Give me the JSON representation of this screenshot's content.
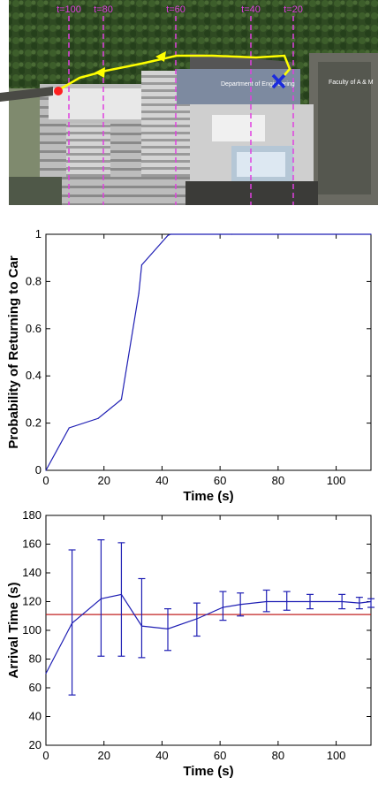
{
  "map": {
    "time_markers": [
      {
        "label": "t=100"
      },
      {
        "label": "t=80"
      },
      {
        "label": "t=60"
      },
      {
        "label": "t=40"
      },
      {
        "label": "t=20"
      }
    ],
    "labels": {
      "building": "Department of Engineering",
      "faculty": "Faculty of A & M"
    },
    "colors": {
      "marker_line": "#e040e0",
      "path": "#ffff00",
      "start": "#ff2020",
      "car": "#1a2bdd"
    }
  },
  "chart_data": [
    {
      "type": "line",
      "xlabel": "Time (s)",
      "ylabel": "Probability of Returning to Car",
      "xlim": [
        0,
        112
      ],
      "ylim": [
        0,
        1
      ],
      "xticks": [
        0,
        20,
        40,
        60,
        80,
        100
      ],
      "yticks": [
        0,
        0.2,
        0.4,
        0.6,
        0.8,
        1
      ],
      "grid": false,
      "series": [
        {
          "color": "#1f1fb4",
          "x": [
            0,
            8,
            18,
            26,
            32,
            33,
            42,
            43,
            60,
            64,
            112
          ],
          "y": [
            0,
            0.18,
            0.22,
            0.3,
            0.75,
            0.87,
            0.995,
            1.0,
            1.0,
            1.0,
            1.0
          ]
        }
      ]
    },
    {
      "type": "line",
      "xlabel": "Time (s)",
      "ylabel": "Arrival Time (s)",
      "xlim": [
        0,
        112
      ],
      "ylim": [
        20,
        180
      ],
      "xticks": [
        0,
        20,
        40,
        60,
        80,
        100
      ],
      "yticks": [
        20,
        40,
        60,
        80,
        100,
        120,
        140,
        160,
        180
      ],
      "grid": false,
      "series": [
        {
          "color": "#1f1fb4",
          "x": [
            0,
            9,
            19,
            26,
            33,
            42,
            52,
            61,
            67,
            76,
            83,
            91,
            102,
            108,
            112
          ],
          "y": [
            70,
            105,
            122,
            125,
            103,
            101,
            108,
            116,
            118,
            120,
            120,
            120,
            120,
            119,
            120
          ],
          "err_low": [
            null,
            55,
            82,
            82,
            81,
            86,
            96,
            107,
            110,
            113,
            114,
            115,
            115,
            115,
            116
          ],
          "err_high": [
            null,
            156,
            163,
            161,
            136,
            115,
            119,
            127,
            126,
            128,
            127,
            125,
            125,
            123,
            122
          ]
        }
      ],
      "reference_line": {
        "y": 111,
        "color": "#c02020"
      }
    }
  ]
}
